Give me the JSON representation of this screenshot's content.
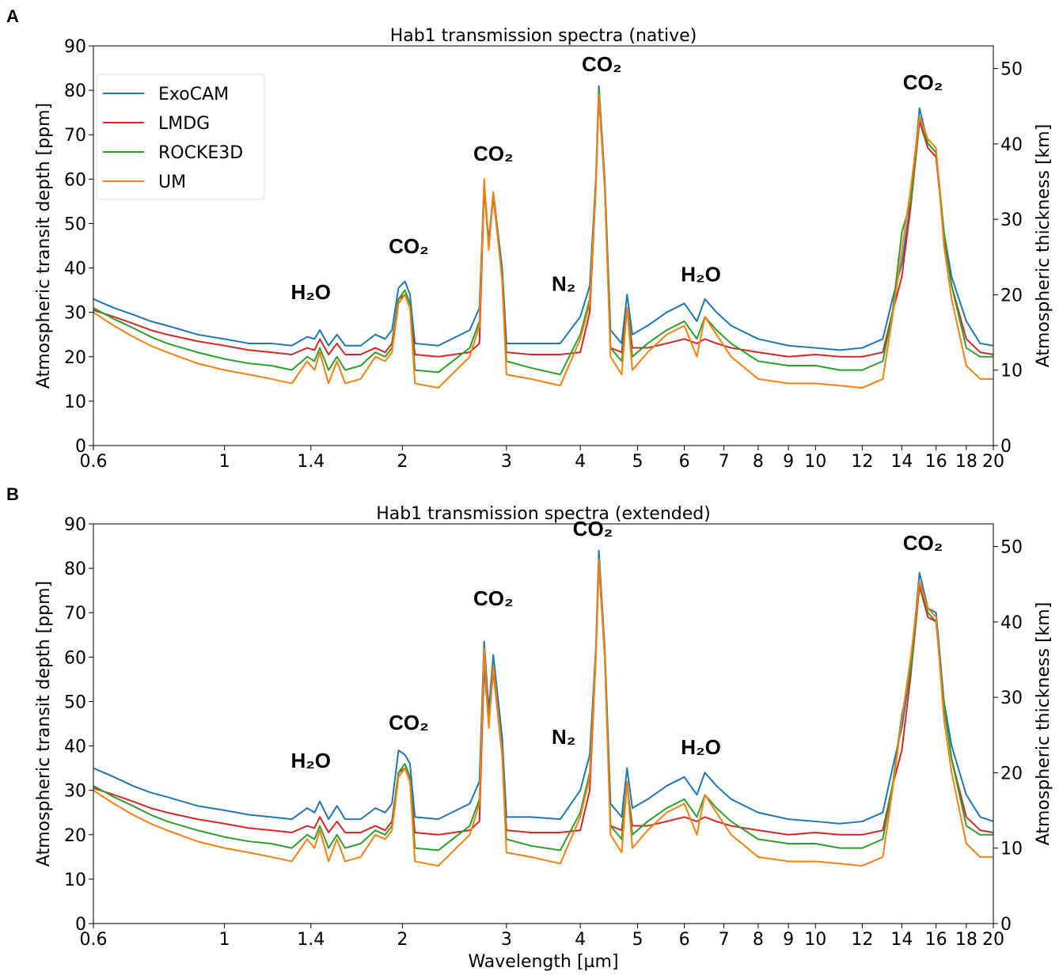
{
  "chart_data": [
    {
      "type": "line",
      "panel": "A",
      "title": "Hab1 transmission spectra (native)",
      "y_label": "Atmospheric transit depth [ppm]",
      "y2_label": "Atmospheric thickness [km]",
      "x_scale": "log",
      "xlim": [
        0.6,
        20
      ],
      "xticks": [
        0.6,
        1,
        1.4,
        2,
        3,
        4,
        5,
        6,
        7,
        8,
        9,
        10,
        12,
        14,
        16,
        18,
        20
      ],
      "ylim": [
        0,
        90
      ],
      "yticks": [
        0,
        10,
        20,
        30,
        40,
        50,
        60,
        70,
        80,
        90
      ],
      "y2lim": [
        0,
        53
      ],
      "y2ticks": [
        0,
        10,
        20,
        30,
        40,
        50
      ],
      "legend": "upper left",
      "x": [
        0.6,
        0.65,
        0.7,
        0.75,
        0.8,
        0.9,
        1.0,
        1.1,
        1.2,
        1.3,
        1.38,
        1.42,
        1.45,
        1.5,
        1.55,
        1.6,
        1.7,
        1.8,
        1.87,
        1.92,
        1.97,
        2.02,
        2.06,
        2.1,
        2.3,
        2.6,
        2.7,
        2.75,
        2.8,
        2.85,
        2.95,
        3.0,
        3.3,
        3.7,
        4.0,
        4.15,
        4.25,
        4.3,
        4.4,
        4.5,
        4.7,
        4.8,
        4.9,
        5.2,
        5.6,
        6.0,
        6.3,
        6.5,
        6.8,
        7.2,
        8.0,
        9.0,
        10,
        11,
        12,
        13,
        13.5,
        14,
        14.5,
        15,
        15.5,
        16,
        16.5,
        17,
        18,
        19,
        20
      ],
      "series": [
        {
          "name": "ExoCAM",
          "color": "#1f77b4",
          "values": [
            33,
            31,
            29.5,
            28,
            27,
            25,
            24,
            23,
            23,
            22.5,
            24.5,
            24,
            26,
            22.5,
            25,
            22.5,
            22.5,
            25,
            24,
            26,
            35.5,
            37,
            34,
            23,
            22.5,
            26,
            31,
            59,
            46,
            57,
            40,
            23,
            23,
            23,
            29,
            36,
            60,
            81,
            60,
            26,
            23,
            34,
            25,
            27,
            30,
            32,
            28,
            33,
            30,
            27,
            24,
            22.5,
            22,
            21.5,
            22,
            24,
            33,
            41,
            55,
            76,
            68,
            66,
            48,
            38,
            28,
            23,
            22.5
          ]
        },
        {
          "name": "LMDG",
          "color": "#d62728",
          "values": [
            30.5,
            29,
            27.5,
            26,
            25,
            23.5,
            22.5,
            21.5,
            21,
            20.5,
            22,
            21.5,
            24,
            20.5,
            23,
            20.5,
            20.5,
            22,
            21,
            23,
            33,
            34,
            31,
            20.5,
            20,
            21,
            23,
            58,
            45,
            56,
            38,
            21,
            20.5,
            20.5,
            21,
            30,
            58,
            79,
            58,
            22,
            21,
            31,
            22,
            22,
            23,
            24,
            23,
            24,
            23,
            22,
            21,
            20,
            20.5,
            20,
            20,
            21,
            30,
            38,
            54,
            73,
            67,
            65,
            47,
            36,
            24,
            21,
            20.5
          ]
        },
        {
          "name": "ROCKE3D",
          "color": "#2ca02c",
          "values": [
            31,
            28.5,
            26.5,
            24.5,
            23,
            21,
            19.5,
            18.5,
            18,
            17,
            20,
            19,
            22,
            17,
            20,
            17,
            18,
            21,
            20,
            22,
            33,
            35,
            32,
            17,
            16.5,
            22,
            28,
            59,
            45,
            57,
            38,
            19,
            17.5,
            16,
            25,
            33,
            59,
            80,
            59,
            22,
            19,
            31,
            20,
            23,
            26,
            28,
            24,
            29,
            26,
            23,
            19,
            18,
            18,
            17,
            17,
            19,
            30,
            48,
            55,
            74,
            68,
            66,
            48,
            36,
            22,
            20,
            20
          ]
        },
        {
          "name": "UM",
          "color": "#ff7f0e",
          "values": [
            30,
            27,
            24.5,
            22.5,
            21,
            18.5,
            17,
            16,
            15,
            14,
            19,
            17,
            21,
            14,
            19,
            14,
            15,
            20,
            19,
            21,
            32,
            34,
            31,
            14,
            13,
            20,
            27,
            60,
            44,
            57,
            37,
            16,
            15,
            13.5,
            24,
            32,
            58,
            79,
            58,
            20,
            16,
            31,
            17,
            21,
            25,
            27,
            20,
            29,
            25,
            20,
            15,
            14,
            14,
            13.5,
            13,
            15,
            29,
            44,
            58,
            74,
            69,
            67,
            45,
            33,
            18,
            15,
            15
          ]
        }
      ],
      "annotations": [
        {
          "text": "H₂O",
          "x": 1.4,
          "y": 33
        },
        {
          "text": "CO₂",
          "x": 2.05,
          "y": 43.3
        },
        {
          "text": "CO₂",
          "x": 2.85,
          "y": 64.2
        },
        {
          "text": "N₂",
          "x": 3.75,
          "y": 34.8
        },
        {
          "text": "CO₂",
          "x": 4.35,
          "y": 84.3
        },
        {
          "text": "H₂O",
          "x": 6.4,
          "y": 37
        },
        {
          "text": "CO₂",
          "x": 15.2,
          "y": 80.2
        }
      ]
    },
    {
      "type": "line",
      "panel": "B",
      "title": "Hab1 transmission spectra (extended)",
      "x_label": "Wavelength [µm]",
      "y_label": "Atmospheric transit depth [ppm]",
      "y2_label": "Atmospheric thickness [km]",
      "x_scale": "log",
      "xlim": [
        0.6,
        20
      ],
      "xticks": [
        0.6,
        1,
        1.4,
        2,
        3,
        4,
        5,
        6,
        7,
        8,
        9,
        10,
        12,
        14,
        16,
        18,
        20
      ],
      "ylim": [
        0,
        90
      ],
      "yticks": [
        0,
        10,
        20,
        30,
        40,
        50,
        60,
        70,
        80,
        90
      ],
      "y2lim": [
        0,
        53
      ],
      "y2ticks": [
        0,
        10,
        20,
        30,
        40,
        50
      ],
      "x": [
        0.6,
        0.65,
        0.7,
        0.75,
        0.8,
        0.9,
        1.0,
        1.1,
        1.2,
        1.3,
        1.38,
        1.42,
        1.45,
        1.5,
        1.55,
        1.6,
        1.7,
        1.8,
        1.87,
        1.92,
        1.97,
        2.02,
        2.06,
        2.1,
        2.3,
        2.6,
        2.7,
        2.75,
        2.8,
        2.85,
        2.95,
        3.0,
        3.3,
        3.7,
        4.0,
        4.15,
        4.25,
        4.3,
        4.4,
        4.5,
        4.7,
        4.8,
        4.9,
        5.2,
        5.6,
        6.0,
        6.3,
        6.5,
        6.8,
        7.2,
        8.0,
        9.0,
        10,
        11,
        12,
        13,
        13.5,
        14,
        14.5,
        15,
        15.5,
        16,
        16.5,
        17,
        18,
        19,
        20
      ],
      "series": [
        {
          "name": "ExoCAM",
          "color": "#1f77b4",
          "values": [
            35,
            33,
            31,
            29.5,
            28.5,
            26.5,
            25.5,
            24.5,
            24,
            23.5,
            26,
            25,
            27.5,
            23.5,
            26.5,
            23.5,
            23.5,
            26,
            25,
            27,
            39,
            38,
            36,
            24,
            23.5,
            27,
            32,
            63.5,
            48,
            60.5,
            42,
            24,
            24,
            23.5,
            30,
            38,
            62,
            84,
            62,
            27,
            24,
            35,
            26,
            28,
            31,
            33,
            29,
            34,
            31,
            28,
            25,
            23.5,
            23,
            22.5,
            23,
            25,
            35,
            44,
            58,
            79,
            71,
            70,
            50,
            40,
            29,
            24,
            23
          ]
        },
        {
          "name": "LMDG",
          "color": "#d62728",
          "values": [
            30.5,
            29,
            27.5,
            26,
            25,
            23.5,
            22.5,
            21.5,
            21,
            20.5,
            22,
            21.5,
            24,
            20.5,
            23,
            20.5,
            20.5,
            22,
            21,
            23,
            34,
            35,
            32,
            20.5,
            20,
            21,
            23,
            58,
            45,
            57,
            38,
            21,
            20.5,
            20.5,
            21,
            30,
            60,
            81,
            60,
            22,
            21,
            31,
            22,
            22,
            23,
            24,
            23,
            24,
            23,
            22,
            21,
            20,
            20.5,
            20,
            20,
            21,
            31,
            39,
            56,
            76,
            69,
            68,
            49,
            37,
            24,
            21,
            20.5
          ]
        },
        {
          "name": "ROCKE3D",
          "color": "#2ca02c",
          "values": [
            31,
            28.5,
            26.5,
            24.5,
            23,
            21,
            19.5,
            18.5,
            18,
            17,
            20,
            19,
            22,
            17,
            20,
            17,
            18,
            21,
            20,
            22,
            34,
            36,
            33,
            17,
            16.5,
            22,
            28,
            60,
            46,
            58,
            39,
            19,
            17.5,
            16.5,
            25,
            34,
            61,
            82,
            61,
            22,
            19,
            32,
            20,
            23,
            26,
            28,
            24,
            29,
            26,
            23,
            19,
            18,
            18,
            17,
            17,
            19,
            31,
            47,
            57,
            77,
            70,
            68,
            49,
            37,
            22,
            20,
            20
          ]
        },
        {
          "name": "UM",
          "color": "#ff7f0e",
          "values": [
            30,
            27,
            24.5,
            22.5,
            21,
            18.5,
            17,
            16,
            15,
            14,
            19,
            17,
            21,
            14,
            19,
            14,
            15,
            20,
            19,
            21,
            33,
            35,
            32,
            14,
            13,
            20,
            27,
            62,
            44,
            58,
            38,
            16,
            15,
            13.5,
            24,
            33,
            60,
            82,
            60,
            20,
            16,
            32,
            17,
            21,
            25,
            27,
            20,
            29,
            25,
            20,
            15,
            14,
            14,
            13.5,
            13,
            15,
            30,
            46,
            60,
            77,
            71,
            69,
            46,
            34,
            18,
            15,
            15
          ]
        }
      ],
      "annotations": [
        {
          "text": "H₂O",
          "x": 1.4,
          "y": 35.1
        },
        {
          "text": "CO₂",
          "x": 2.05,
          "y": 43.7
        },
        {
          "text": "CO₂",
          "x": 2.85,
          "y": 71.6
        },
        {
          "text": "N₂",
          "x": 3.75,
          "y": 40.5
        },
        {
          "text": "CO₂",
          "x": 4.2,
          "y": 87.3
        },
        {
          "text": "H₂O",
          "x": 6.4,
          "y": 38.1
        },
        {
          "text": "CO₂",
          "x": 15.2,
          "y": 84.1
        }
      ]
    }
  ]
}
